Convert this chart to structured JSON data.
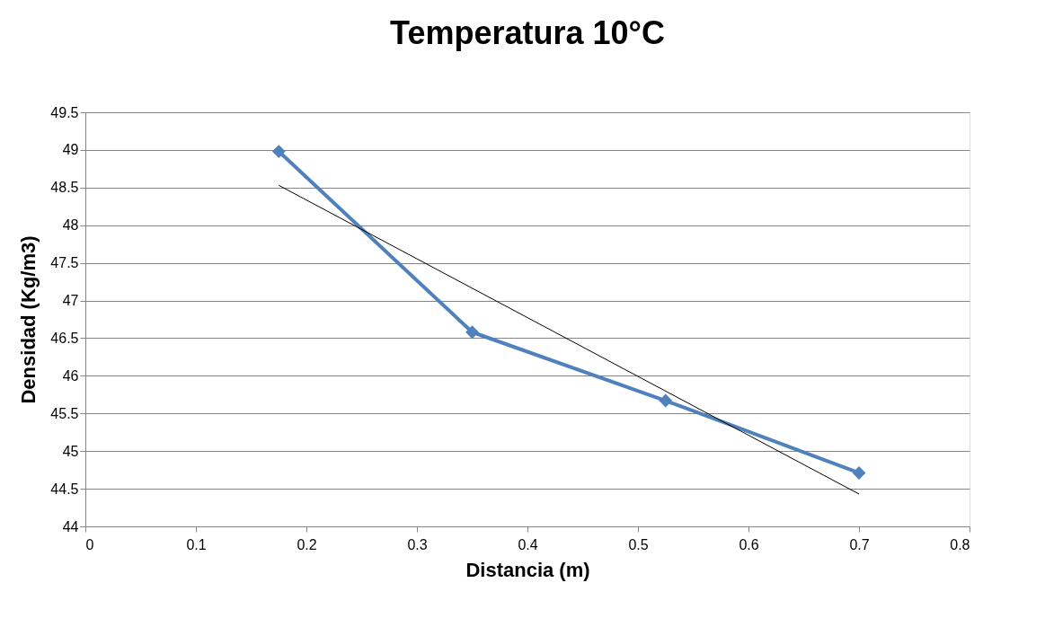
{
  "chart_data": {
    "type": "line",
    "title": "Temperatura 10°C",
    "xlabel": "Distancia (m)",
    "ylabel": "Densidad (Kg/m3)",
    "xlim": [
      0,
      0.8
    ],
    "xticks": [
      0,
      0.1,
      0.2,
      0.3,
      0.4,
      0.5,
      0.6,
      0.7,
      0.8
    ],
    "ylim": [
      44,
      49.5
    ],
    "yticks": [
      44,
      44.5,
      45,
      45.5,
      46,
      46.5,
      47,
      47.5,
      48,
      48.5,
      49,
      49.5
    ],
    "grid": "y",
    "line_style": "solid",
    "series": [
      {
        "color": "#4f81bd",
        "marker": "diamond",
        "x": [
          0.175,
          0.35,
          0.525,
          0.7
        ],
        "values": [
          48.98,
          46.58,
          45.67,
          44.71
        ]
      },
      {
        "color": "#000000",
        "marker": "none",
        "x": [
          0.175,
          0.7
        ],
        "values": [
          48.53,
          44.43
        ]
      }
    ]
  }
}
